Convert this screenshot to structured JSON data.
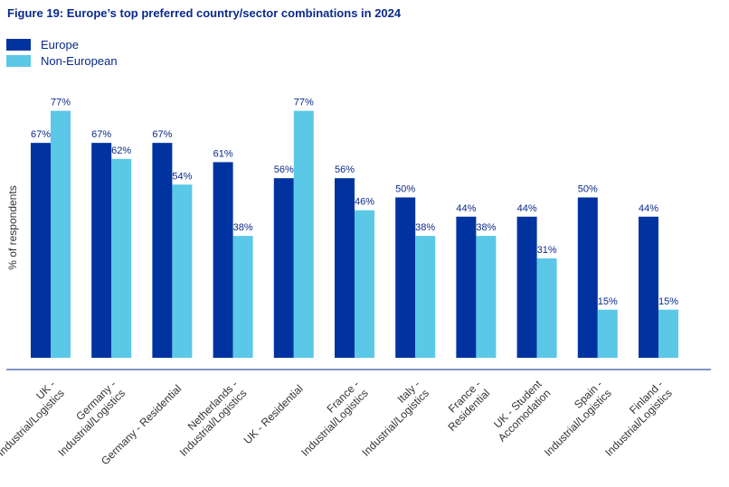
{
  "chart_data": {
    "type": "bar",
    "title": "Figure 19: Europe’s top preferred country/sector combinations in 2024",
    "xlabel": "",
    "ylabel": "% of respondents",
    "ylim": [
      0,
      100
    ],
    "grid": false,
    "legend_position": "top-left",
    "categories": [
      [
        "UK -",
        "Industrial/Logistics"
      ],
      [
        "Germany -",
        "Industrial/Logistics"
      ],
      [
        "Germany - Residential"
      ],
      [
        "Netherlands -",
        "Industrial/Logistics"
      ],
      [
        "UK - Residential"
      ],
      [
        "France -",
        "Industrial/Logistics"
      ],
      [
        "Italy -",
        "Industrial/Logistics"
      ],
      [
        "France -",
        "Residential"
      ],
      [
        "UK - Student",
        "Accomodation"
      ],
      [
        "Spain -",
        "Industrial/Logistics"
      ],
      [
        "Finland -",
        "Industrial/Logistics"
      ]
    ],
    "series": [
      {
        "name": "Europe",
        "color": "#0033a0",
        "values": [
          67,
          67,
          67,
          61,
          56,
          56,
          50,
          44,
          44,
          50,
          44
        ],
        "labels": [
          "67%",
          "67%",
          "67%",
          "61%",
          "56%",
          "56%",
          "50%",
          "44%",
          "44%",
          "50%",
          "44%"
        ]
      },
      {
        "name": "Non-European",
        "color": "#5bc8e8",
        "values": [
          77,
          62,
          54,
          38,
          77,
          46,
          38,
          38,
          31,
          15,
          15
        ],
        "labels": [
          "77%",
          "62%",
          "54%",
          "38%",
          "77%",
          "46%",
          "38%",
          "38%",
          "31%",
          "15%",
          "15%"
        ]
      }
    ]
  }
}
